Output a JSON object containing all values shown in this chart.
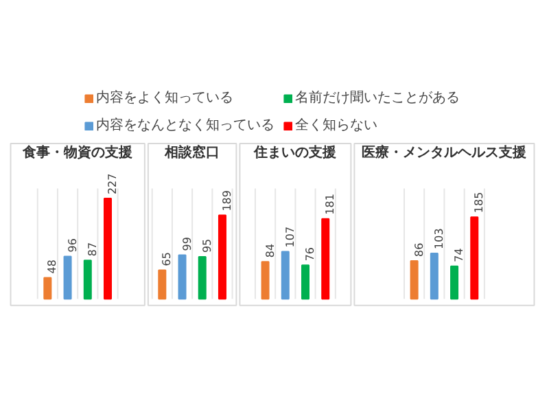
{
  "chart_data": {
    "type": "bar",
    "categories": [
      "食事・物資の支援",
      "相談窓口",
      "住まいの支援",
      "医療・メンタルヘルス支援"
    ],
    "series": [
      {
        "name": "内容をよく知っている",
        "color": "#ed7d31",
        "values": [
          48,
          65,
          84,
          86
        ]
      },
      {
        "name": "内容をなんとなく知っている",
        "color": "#5b9bd5",
        "values": [
          96,
          99,
          107,
          103
        ]
      },
      {
        "name": "名前だけ聞いたことがある",
        "color": "#00b050",
        "values": [
          87,
          95,
          76,
          74
        ]
      },
      {
        "name": "全く知らない",
        "color": "#ff0000",
        "values": [
          227,
          189,
          181,
          185
        ]
      }
    ],
    "data_labels": true,
    "legend": "top",
    "grid": "x"
  }
}
